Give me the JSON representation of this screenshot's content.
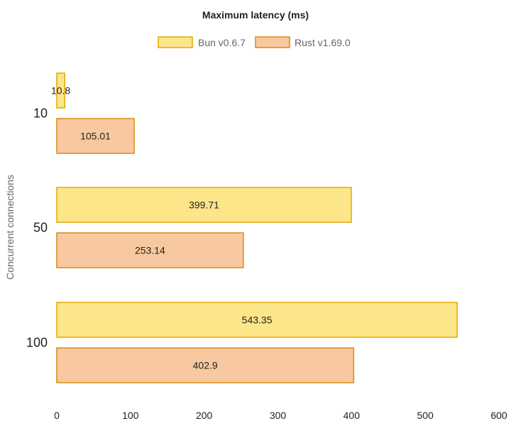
{
  "chart_data": {
    "type": "bar",
    "orientation": "horizontal",
    "title": "Maximum latency (ms)",
    "ylabel": "Concurrent connections",
    "xlabel": "",
    "categories": [
      "10",
      "50",
      "100"
    ],
    "series": [
      {
        "name": "Bun v0.6.7",
        "values": [
          10.8,
          399.71,
          543.35
        ],
        "color": "#fde68a",
        "border": "#e6a800"
      },
      {
        "name": "Rust v1.69.0",
        "values": [
          105.01,
          253.14,
          402.9
        ],
        "color": "#f8c9a0",
        "border": "#d98a10"
      }
    ],
    "xlim": [
      0,
      600
    ],
    "xticks": [
      "0",
      "100",
      "200",
      "300",
      "400",
      "500",
      "600"
    ],
    "legend": "top",
    "grid": false
  }
}
